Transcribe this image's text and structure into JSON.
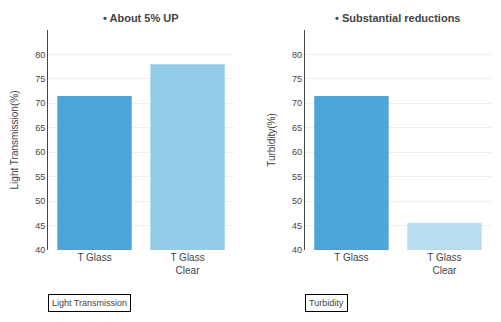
{
  "chart_data": [
    {
      "type": "bar",
      "title": "• About 5% UP",
      "y_label": "Light Transmission(%)",
      "categories": [
        "T Glass",
        "T Glass\nClear"
      ],
      "values": [
        71.5,
        78.0
      ],
      "colors": [
        "#4da6d9",
        "#93cce8"
      ],
      "ylim": [
        40,
        85
      ],
      "yticks": [
        40,
        45,
        50,
        55,
        60,
        65,
        70,
        75,
        80
      ],
      "grid": true,
      "annotations": [
        "Light Transmission"
      ]
    },
    {
      "type": "bar",
      "title": "• Substantial reductions",
      "y_label": "Turbidity(%)",
      "categories": [
        "T Glass",
        "T Glass\nClear"
      ],
      "values": [
        71.5,
        45.5
      ],
      "colors": [
        "#4da6d9",
        "#b8ddf0"
      ],
      "ylim": [
        40,
        85
      ],
      "yticks": [
        40,
        45,
        50,
        55,
        60,
        65,
        70,
        75,
        80
      ],
      "grid": true,
      "annotations": [
        "Turbidity"
      ]
    }
  ]
}
